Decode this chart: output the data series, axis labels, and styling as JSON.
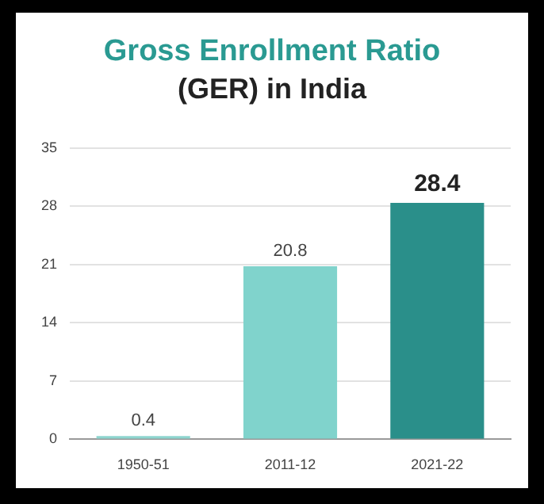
{
  "chart_data": {
    "type": "bar",
    "title": "Gross Enrollment Ratio",
    "subtitle": "(GER) in India",
    "categories": [
      "1950-51",
      "2011-12",
      "2021-22"
    ],
    "values": [
      0.4,
      20.8,
      28.4
    ],
    "colors": [
      "#8ed5cf",
      "#80d3cc",
      "#2a8f8a"
    ],
    "ylim": [
      0,
      35
    ],
    "yticks": [
      0,
      7,
      14,
      21,
      28,
      35
    ],
    "grid": "y",
    "data_labels": true
  }
}
